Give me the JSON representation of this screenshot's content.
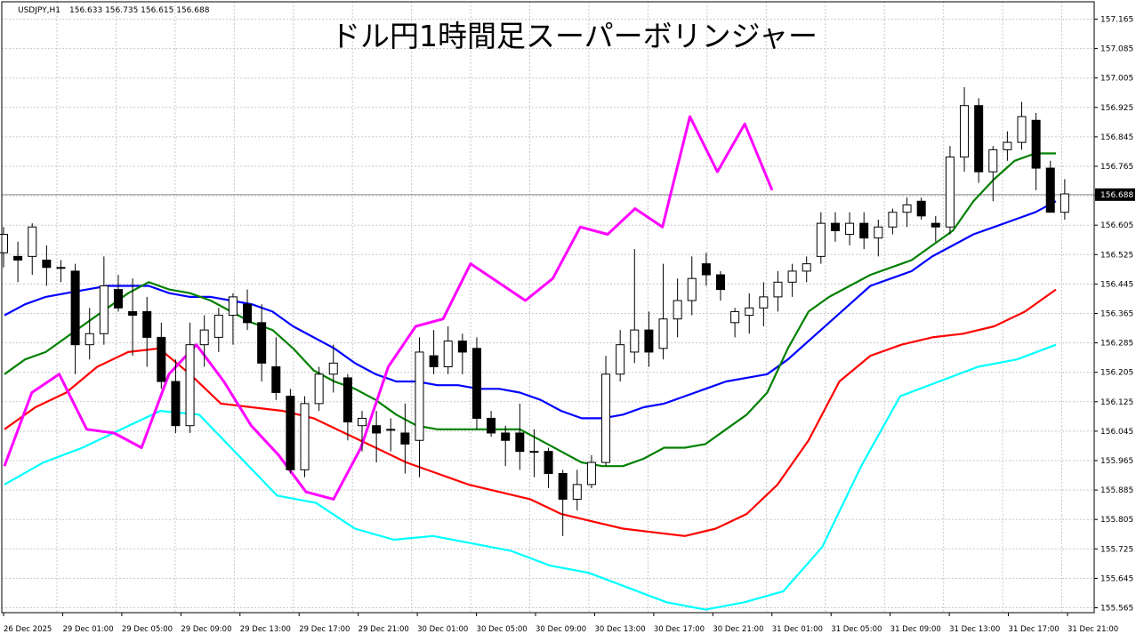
{
  "header": {
    "symbol": "USDJPY,H1",
    "ohlc": "156.633 156.735 156.615 156.688"
  },
  "title": "ドル円1時間足スーパーボリンジャー",
  "price_tag": "156.688",
  "colors": {
    "background": "#ffffff",
    "grid": "#c8c8c8",
    "bull_body": "#ffffff",
    "bear_body": "#000000",
    "candle_outline": "#000000",
    "sma": "#0000ff",
    "sigma1": "#008000",
    "sigma2": "#ff0000",
    "sigma3": "#00ffff",
    "lagging_span": "#ff00ff",
    "price_tag_bg": "#000000",
    "price_tag_text": "#ffffff"
  },
  "chart_data": {
    "type": "candlestick",
    "title": "ドル円1時間足スーパーボリンジャー",
    "ylim": [
      155.55,
      157.2
    ],
    "y_ticks": [
      "157.165",
      "157.085",
      "157.005",
      "156.925",
      "156.845",
      "156.765",
      "156.685",
      "156.605",
      "156.525",
      "156.445",
      "156.365",
      "156.285",
      "156.205",
      "156.125",
      "156.045",
      "155.965",
      "155.885",
      "155.805",
      "155.725",
      "155.645",
      "155.565"
    ],
    "x_labels": [
      "26 Dec 2025",
      "29 Dec 01:00",
      "29 Dec 05:00",
      "29 Dec 09:00",
      "29 Dec 13:00",
      "29 Dec 17:00",
      "29 Dec 21:00",
      "30 Dec 01:00",
      "30 Dec 05:00",
      "30 Dec 09:00",
      "30 Dec 13:00",
      "30 Dec 17:00",
      "30 Dec 21:00",
      "31 Dec 01:00",
      "31 Dec 05:00",
      "31 Dec 09:00",
      "31 Dec 13:00",
      "31 Dec 17:00",
      "31 Dec 21:00"
    ],
    "current_price": 156.688,
    "candles": [
      {
        "o": 156.53,
        "h": 156.6,
        "l": 156.49,
        "c": 156.58
      },
      {
        "o": 156.52,
        "h": 156.56,
        "l": 156.45,
        "c": 156.51
      },
      {
        "o": 156.52,
        "h": 156.61,
        "l": 156.47,
        "c": 156.6
      },
      {
        "o": 156.51,
        "h": 156.55,
        "l": 156.44,
        "c": 156.49
      },
      {
        "o": 156.49,
        "h": 156.51,
        "l": 156.45,
        "c": 156.49
      },
      {
        "o": 156.48,
        "h": 156.5,
        "l": 156.2,
        "c": 156.28
      },
      {
        "o": 156.28,
        "h": 156.38,
        "l": 156.24,
        "c": 156.31
      },
      {
        "o": 156.31,
        "h": 156.52,
        "l": 156.28,
        "c": 156.44
      },
      {
        "o": 156.43,
        "h": 156.47,
        "l": 156.37,
        "c": 156.38
      },
      {
        "o": 156.37,
        "h": 156.46,
        "l": 156.25,
        "c": 156.36
      },
      {
        "o": 156.37,
        "h": 156.41,
        "l": 156.22,
        "c": 156.3
      },
      {
        "o": 156.3,
        "h": 156.34,
        "l": 156.16,
        "c": 156.18
      },
      {
        "o": 156.18,
        "h": 156.24,
        "l": 156.04,
        "c": 156.06
      },
      {
        "o": 156.06,
        "h": 156.34,
        "l": 156.04,
        "c": 156.28
      },
      {
        "o": 156.28,
        "h": 156.36,
        "l": 156.22,
        "c": 156.32
      },
      {
        "o": 156.3,
        "h": 156.38,
        "l": 156.26,
        "c": 156.36
      },
      {
        "o": 156.36,
        "h": 156.42,
        "l": 156.28,
        "c": 156.41
      },
      {
        "o": 156.39,
        "h": 156.43,
        "l": 156.32,
        "c": 156.34
      },
      {
        "o": 156.34,
        "h": 156.39,
        "l": 156.18,
        "c": 156.23
      },
      {
        "o": 156.22,
        "h": 156.3,
        "l": 156.13,
        "c": 156.15
      },
      {
        "o": 156.14,
        "h": 156.16,
        "l": 155.93,
        "c": 155.94
      },
      {
        "o": 155.94,
        "h": 156.14,
        "l": 155.92,
        "c": 156.12
      },
      {
        "o": 156.12,
        "h": 156.22,
        "l": 156.1,
        "c": 156.2
      },
      {
        "o": 156.2,
        "h": 156.28,
        "l": 156.15,
        "c": 156.23
      },
      {
        "o": 156.19,
        "h": 156.2,
        "l": 156.02,
        "c": 156.07
      },
      {
        "o": 156.06,
        "h": 156.1,
        "l": 155.99,
        "c": 156.08
      },
      {
        "o": 156.06,
        "h": 156.1,
        "l": 155.96,
        "c": 156.04
      },
      {
        "o": 156.05,
        "h": 156.08,
        "l": 155.99,
        "c": 156.05
      },
      {
        "o": 156.04,
        "h": 156.12,
        "l": 155.93,
        "c": 156.01
      },
      {
        "o": 156.02,
        "h": 156.3,
        "l": 155.92,
        "c": 156.26
      },
      {
        "o": 156.25,
        "h": 156.32,
        "l": 156.2,
        "c": 156.22
      },
      {
        "o": 156.22,
        "h": 156.33,
        "l": 156.2,
        "c": 156.29
      },
      {
        "o": 156.29,
        "h": 156.31,
        "l": 156.2,
        "c": 156.26
      },
      {
        "o": 156.27,
        "h": 156.3,
        "l": 156.05,
        "c": 156.08
      },
      {
        "o": 156.08,
        "h": 156.1,
        "l": 156.03,
        "c": 156.04
      },
      {
        "o": 156.04,
        "h": 156.06,
        "l": 155.95,
        "c": 156.02
      },
      {
        "o": 156.04,
        "h": 156.12,
        "l": 155.94,
        "c": 155.99
      },
      {
        "o": 155.99,
        "h": 156.05,
        "l": 155.92,
        "c": 155.99
      },
      {
        "o": 155.99,
        "h": 156.0,
        "l": 155.89,
        "c": 155.93
      },
      {
        "o": 155.93,
        "h": 155.94,
        "l": 155.76,
        "c": 155.86
      },
      {
        "o": 155.86,
        "h": 155.94,
        "l": 155.83,
        "c": 155.9
      },
      {
        "o": 155.9,
        "h": 155.98,
        "l": 155.89,
        "c": 155.96
      },
      {
        "o": 155.96,
        "h": 156.25,
        "l": 155.95,
        "c": 156.2
      },
      {
        "o": 156.2,
        "h": 156.32,
        "l": 156.18,
        "c": 156.28
      },
      {
        "o": 156.26,
        "h": 156.54,
        "l": 156.23,
        "c": 156.32
      },
      {
        "o": 156.32,
        "h": 156.37,
        "l": 156.22,
        "c": 156.26
      },
      {
        "o": 156.27,
        "h": 156.5,
        "l": 156.24,
        "c": 156.35
      },
      {
        "o": 156.35,
        "h": 156.46,
        "l": 156.3,
        "c": 156.4
      },
      {
        "o": 156.4,
        "h": 156.52,
        "l": 156.36,
        "c": 156.46
      },
      {
        "o": 156.5,
        "h": 156.53,
        "l": 156.44,
        "c": 156.47
      },
      {
        "o": 156.47,
        "h": 156.48,
        "l": 156.4,
        "c": 156.43
      },
      {
        "o": 156.34,
        "h": 156.38,
        "l": 156.3,
        "c": 156.37
      },
      {
        "o": 156.36,
        "h": 156.42,
        "l": 156.31,
        "c": 156.38
      },
      {
        "o": 156.38,
        "h": 156.45,
        "l": 156.33,
        "c": 156.41
      },
      {
        "o": 156.41,
        "h": 156.48,
        "l": 156.37,
        "c": 156.45
      },
      {
        "o": 156.45,
        "h": 156.5,
        "l": 156.41,
        "c": 156.48
      },
      {
        "o": 156.48,
        "h": 156.52,
        "l": 156.45,
        "c": 156.5
      },
      {
        "o": 156.52,
        "h": 156.64,
        "l": 156.5,
        "c": 156.61
      },
      {
        "o": 156.61,
        "h": 156.64,
        "l": 156.56,
        "c": 156.59
      },
      {
        "o": 156.58,
        "h": 156.64,
        "l": 156.55,
        "c": 156.61
      },
      {
        "o": 156.61,
        "h": 156.64,
        "l": 156.54,
        "c": 156.57
      },
      {
        "o": 156.57,
        "h": 156.62,
        "l": 156.52,
        "c": 156.6
      },
      {
        "o": 156.6,
        "h": 156.65,
        "l": 156.58,
        "c": 156.64
      },
      {
        "o": 156.64,
        "h": 156.68,
        "l": 156.6,
        "c": 156.66
      },
      {
        "o": 156.67,
        "h": 156.68,
        "l": 156.62,
        "c": 156.63
      },
      {
        "o": 156.61,
        "h": 156.63,
        "l": 156.56,
        "c": 156.6
      },
      {
        "o": 156.6,
        "h": 156.82,
        "l": 156.58,
        "c": 156.79
      },
      {
        "o": 156.79,
        "h": 156.98,
        "l": 156.75,
        "c": 156.93
      },
      {
        "o": 156.93,
        "h": 156.95,
        "l": 156.72,
        "c": 156.75
      },
      {
        "o": 156.75,
        "h": 156.82,
        "l": 156.67,
        "c": 156.81
      },
      {
        "o": 156.81,
        "h": 156.86,
        "l": 156.78,
        "c": 156.83
      },
      {
        "o": 156.83,
        "h": 156.94,
        "l": 156.81,
        "c": 156.9
      },
      {
        "o": 156.89,
        "h": 156.91,
        "l": 156.7,
        "c": 156.76
      },
      {
        "o": 156.76,
        "h": 156.78,
        "l": 156.64,
        "c": 156.64
      },
      {
        "o": 156.64,
        "h": 156.73,
        "l": 156.62,
        "c": 156.69
      }
    ],
    "series": [
      {
        "name": "",
        "color": "#0000ff",
        "values": [
          156.36,
          156.39,
          156.41,
          156.42,
          156.43,
          156.44,
          156.44,
          156.44,
          156.42,
          156.41,
          156.41,
          156.4,
          156.39,
          156.37,
          156.33,
          156.3,
          156.27,
          156.23,
          156.2,
          156.18,
          156.18,
          156.17,
          156.17,
          156.16,
          156.16,
          156.15,
          156.13,
          156.1,
          156.08,
          156.08,
          156.09,
          156.11,
          156.12,
          156.14,
          156.16,
          156.18,
          156.19,
          156.2,
          156.24,
          156.29,
          156.34,
          156.39,
          156.44,
          156.46,
          156.48,
          156.52,
          156.55,
          156.58,
          156.6,
          156.62,
          156.64,
          156.67
        ]
      },
      {
        "name": "",
        "color": "#008000",
        "values": [
          156.2,
          156.24,
          156.26,
          156.3,
          156.34,
          156.38,
          156.42,
          156.45,
          156.43,
          156.42,
          156.4,
          156.37,
          156.34,
          156.32,
          156.27,
          156.21,
          156.18,
          156.16,
          156.13,
          156.09,
          156.06,
          156.05,
          156.05,
          156.05,
          156.05,
          156.05,
          156.02,
          155.99,
          155.96,
          155.95,
          155.95,
          155.97,
          156.0,
          156.0,
          156.01,
          156.05,
          156.09,
          156.15,
          156.27,
          156.37,
          156.41,
          156.44,
          156.47,
          156.49,
          156.51,
          156.55,
          156.59,
          156.67,
          156.73,
          156.78,
          156.8,
          156.8
        ]
      },
      {
        "name": "",
        "color": "#ff0000",
        "values": [
          156.05,
          156.11,
          156.15,
          156.22,
          156.26,
          156.27,
          156.2,
          156.12,
          156.11,
          156.1,
          156.08,
          156.04,
          156.0,
          155.96,
          155.93,
          155.9,
          155.88,
          155.86,
          155.82,
          155.8,
          155.78,
          155.77,
          155.76,
          155.78,
          155.82,
          155.9,
          156.02,
          156.18,
          156.25,
          156.28,
          156.3,
          156.31,
          156.33,
          156.37,
          156.43
        ]
      },
      {
        "name": "",
        "color": "#00ffff",
        "values": [
          155.9,
          155.96,
          156.0,
          156.05,
          156.1,
          156.09,
          155.98,
          155.87,
          155.85,
          155.78,
          155.75,
          155.76,
          155.74,
          155.72,
          155.68,
          155.66,
          155.62,
          155.58,
          155.56,
          155.58,
          155.61,
          155.73,
          155.95,
          156.14,
          156.18,
          156.22,
          156.24,
          156.28
        ]
      },
      {
        "name": "",
        "color": "#ff00ff",
        "values": [
          155.95,
          156.15,
          156.2,
          156.05,
          156.04,
          156.0,
          156.2,
          156.28,
          156.18,
          156.06,
          155.98,
          155.88,
          155.86,
          156.0,
          156.22,
          156.33,
          156.35,
          156.5,
          156.45,
          156.4,
          156.46,
          156.6,
          156.58,
          156.65,
          156.6,
          156.9,
          156.75,
          156.88,
          156.7
        ]
      }
    ]
  }
}
